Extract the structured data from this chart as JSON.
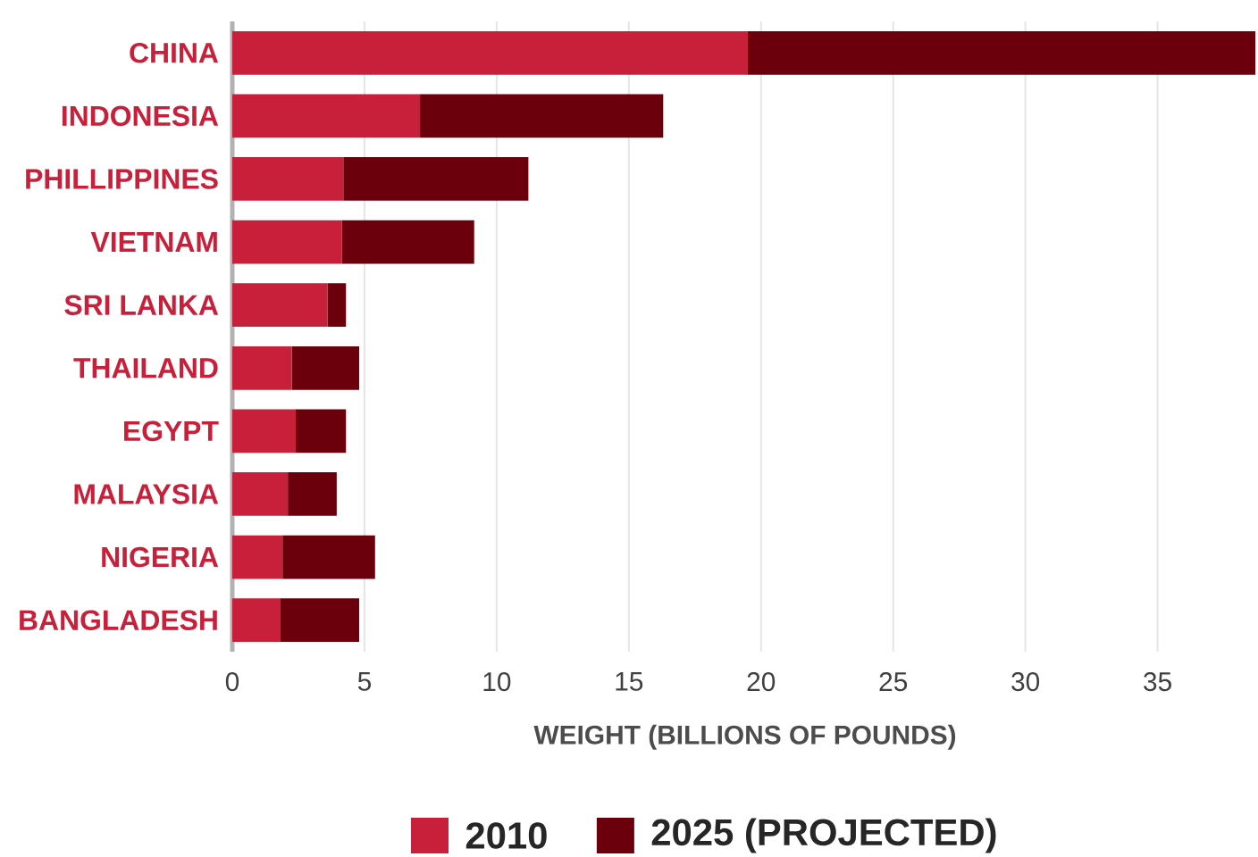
{
  "chart_data": {
    "type": "bar",
    "orientation": "horizontal",
    "stacked": true,
    "categories": [
      "CHINA",
      "INDONESIA",
      "PHILLIPPINES",
      "VIETNAM",
      "SRI LANKA",
      "THAILAND",
      "EGYPT",
      "MALAYSIA",
      "NIGERIA",
      "BANGLADESH"
    ],
    "series": [
      {
        "name": "2010",
        "color": "#c8203a",
        "values": [
          19.5,
          7.1,
          4.2,
          4.15,
          3.6,
          2.25,
          2.4,
          2.1,
          1.9,
          1.8
        ]
      },
      {
        "name": "2025 (PROJECTED)",
        "color": "#6b000c",
        "values": [
          19.2,
          9.2,
          7.0,
          5.0,
          0.7,
          2.55,
          1.9,
          1.85,
          3.5,
          3.0
        ]
      }
    ],
    "xlabel": "WEIGHT (BILLIONS OF POUNDS)",
    "xlim": [
      0,
      38.8
    ],
    "xticks": [
      0,
      5,
      10,
      15,
      20,
      25,
      30,
      35
    ],
    "grid": "x",
    "legend": "bottom"
  }
}
